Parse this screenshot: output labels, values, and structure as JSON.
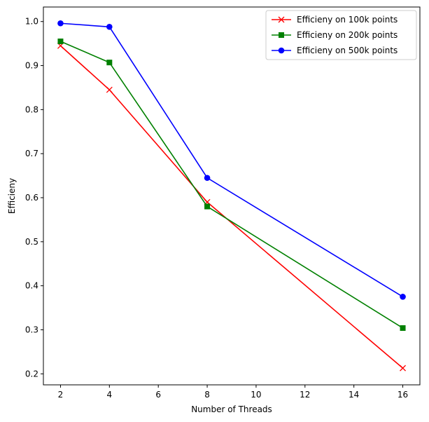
{
  "chart_data": {
    "type": "line",
    "title": "",
    "xlabel": "Number of Threads",
    "ylabel": "Efficieny",
    "xlim": [
      1.3,
      16.7
    ],
    "ylim": [
      0.175,
      1.033
    ],
    "xticks": [
      2,
      4,
      6,
      8,
      10,
      12,
      14,
      16
    ],
    "yticks": [
      0.2,
      0.3,
      0.4,
      0.5,
      0.6,
      0.7,
      0.8,
      0.9,
      1.0
    ],
    "ytick_labels": [
      "0.2",
      "0.3",
      "0.4",
      "0.5",
      "0.6",
      "0.7",
      "0.8",
      "0.9",
      "1.0"
    ],
    "grid": false,
    "legend_position": "top-right",
    "x": [
      2,
      4,
      8,
      16
    ],
    "series": [
      {
        "name": "Efficieny on 100k points",
        "values": [
          0.945,
          0.845,
          0.59,
          0.213
        ],
        "color": "#ff0000",
        "marker": "x"
      },
      {
        "name": "Efficieny on 200k points",
        "values": [
          0.955,
          0.907,
          0.58,
          0.304
        ],
        "color": "#008000",
        "marker": "square"
      },
      {
        "name": "Efficieny on 500k points",
        "values": [
          0.996,
          0.988,
          0.645,
          0.375
        ],
        "color": "#0000ff",
        "marker": "circle"
      }
    ]
  }
}
